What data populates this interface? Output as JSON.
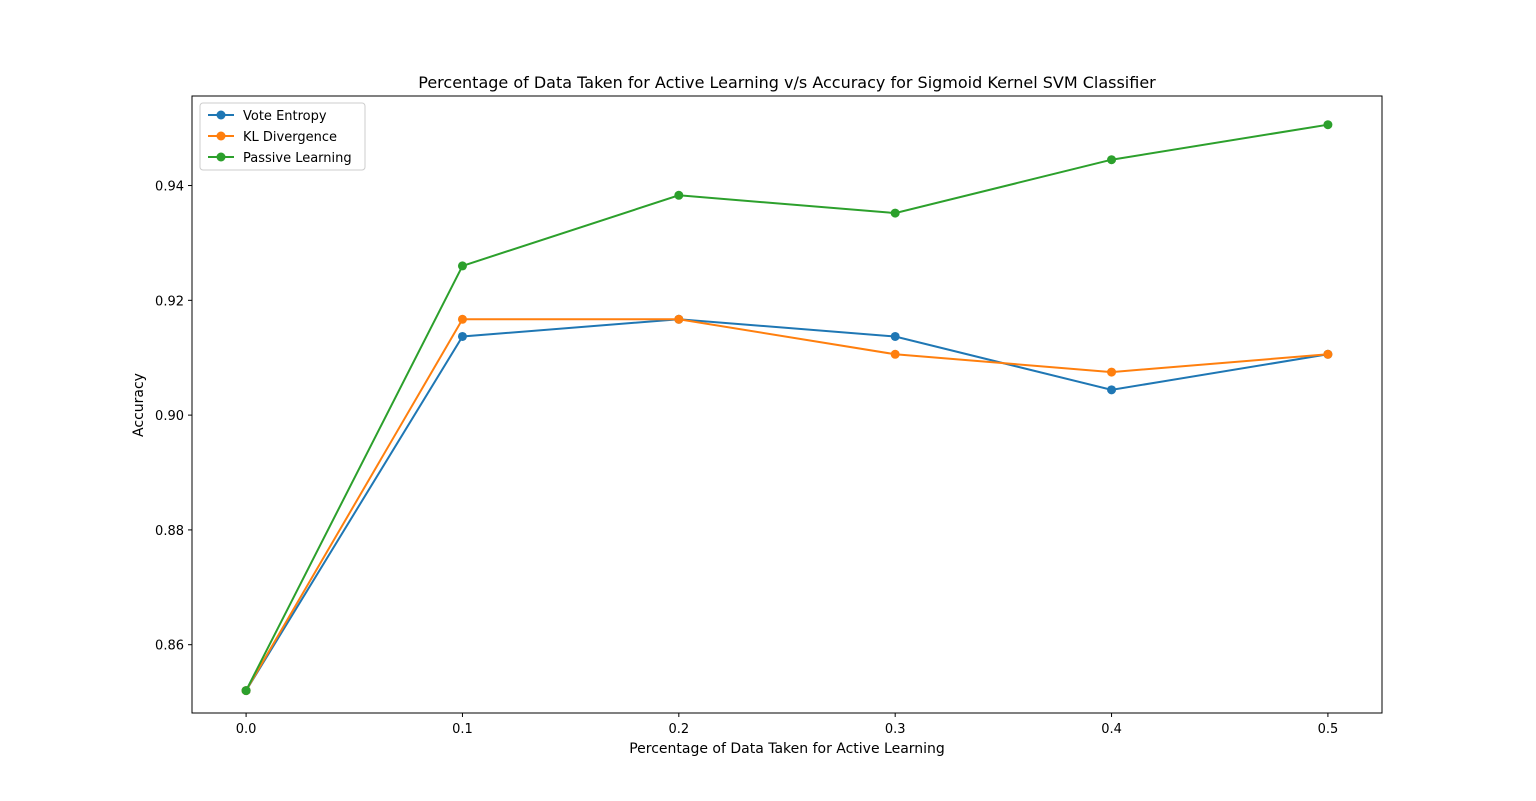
{
  "chart_data": {
    "type": "line",
    "title": "Percentage of Data Taken for Active Learning v/s Accuracy for Sigmoid Kernel SVM Classifier",
    "xlabel": "Percentage of Data Taken for Active Learning",
    "ylabel": "Accuracy",
    "x": [
      0.0,
      0.1,
      0.2,
      0.3,
      0.4,
      0.5
    ],
    "xticks": [
      0.0,
      0.1,
      0.2,
      0.3,
      0.4,
      0.5
    ],
    "xtick_labels": [
      "0.0",
      "0.1",
      "0.2",
      "0.3",
      "0.4",
      "0.5"
    ],
    "yticks": [
      0.86,
      0.88,
      0.9,
      0.92,
      0.94
    ],
    "ytick_labels": [
      "0.86",
      "0.88",
      "0.90",
      "0.92",
      "0.94"
    ],
    "xlim": [
      -0.025,
      0.525
    ],
    "ylim": [
      0.8481,
      0.9556
    ],
    "grid": false,
    "legend_position": "top-left",
    "series": [
      {
        "name": "Vote Entropy",
        "color": "#1f77b4",
        "values": [
          0.852,
          0.9137,
          0.9167,
          0.9137,
          0.9044,
          0.9106
        ]
      },
      {
        "name": "KL Divergence",
        "color": "#ff7f0e",
        "values": [
          0.852,
          0.9167,
          0.9167,
          0.9106,
          0.9075,
          0.9106
        ]
      },
      {
        "name": "Passive Learning",
        "color": "#2ca02c",
        "values": [
          0.852,
          0.926,
          0.9383,
          0.9352,
          0.9445,
          0.9506
        ]
      }
    ]
  }
}
